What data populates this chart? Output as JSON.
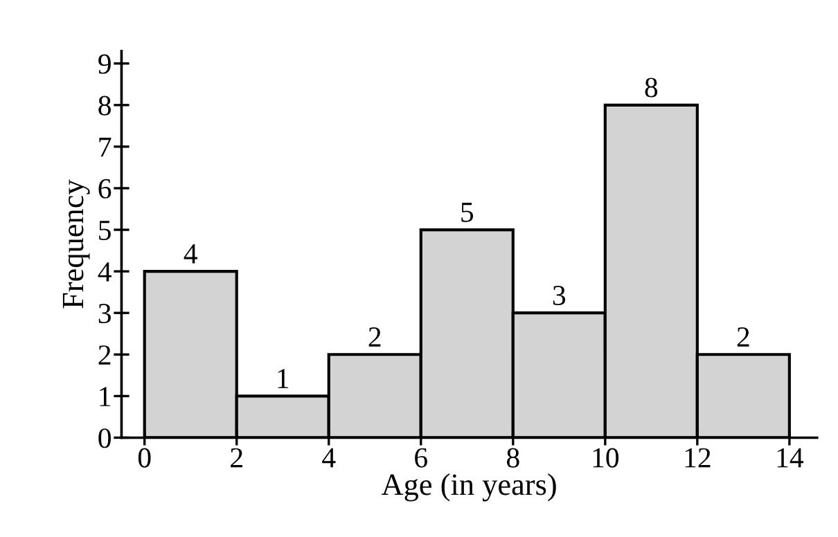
{
  "chart_data": {
    "type": "histogram",
    "xlabel": "Age (in years)",
    "ylabel": "Frequency",
    "bins": [
      0,
      2,
      4,
      6,
      8,
      10,
      12,
      14
    ],
    "values": [
      4,
      1,
      2,
      5,
      3,
      8,
      2
    ],
    "color": "#d3d3d3",
    "xlim": [
      -0.5,
      14.6
    ],
    "ylim": [
      0,
      9.3
    ],
    "xticks": [
      0,
      2,
      4,
      6,
      8,
      10,
      12,
      14
    ],
    "yticks": [
      0,
      1,
      2,
      3,
      4,
      5,
      6,
      7,
      8,
      9
    ],
    "data_labels": true,
    "grid": false,
    "legend": false
  }
}
